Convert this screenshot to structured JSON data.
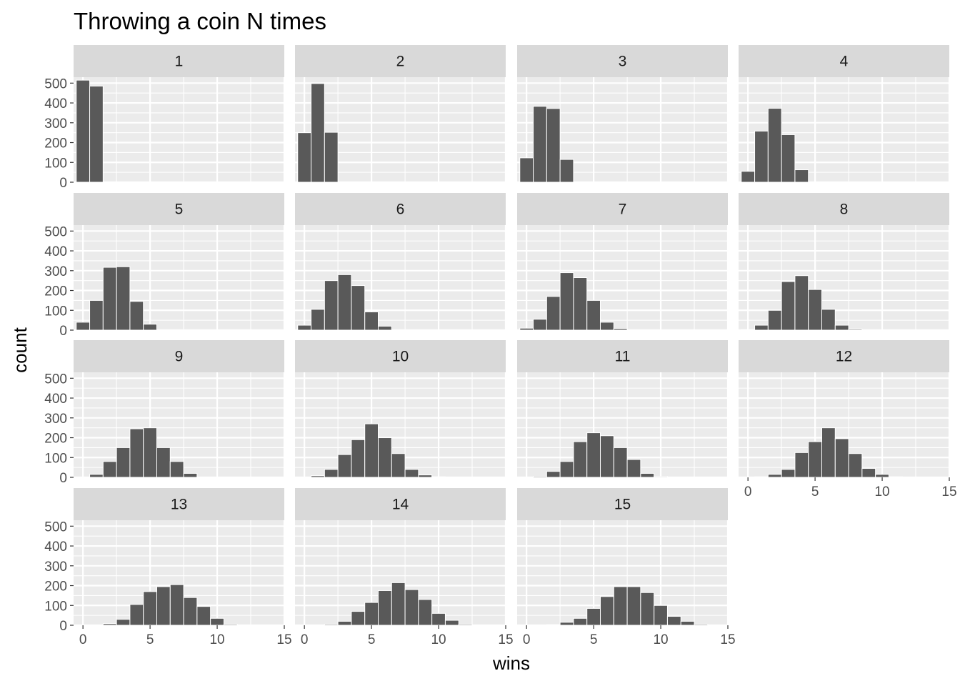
{
  "chart_data": {
    "type": "bar",
    "title": "Throwing a coin N times",
    "xlabel": "wins",
    "ylabel": "count",
    "xlim": [
      -0.7,
      15
    ],
    "ylim": [
      0,
      530
    ],
    "x_ticks": [
      0,
      5,
      10,
      15
    ],
    "y_ticks": [
      0,
      100,
      200,
      300,
      400,
      500
    ],
    "grid": true,
    "facets": [
      {
        "label": "1",
        "bins": [
          0,
          1
        ],
        "counts": [
          515,
          485
        ]
      },
      {
        "label": "2",
        "bins": [
          0,
          1,
          2
        ],
        "counts": [
          250,
          498,
          252
        ]
      },
      {
        "label": "3",
        "bins": [
          0,
          1,
          2,
          3
        ],
        "counts": [
          123,
          383,
          372,
          115
        ]
      },
      {
        "label": "4",
        "bins": [
          0,
          1,
          2,
          3,
          4
        ],
        "counts": [
          55,
          258,
          373,
          240,
          63
        ]
      },
      {
        "label": "5",
        "bins": [
          0,
          1,
          2,
          3,
          4,
          5
        ],
        "counts": [
          40,
          150,
          317,
          320,
          145,
          30
        ]
      },
      {
        "label": "6",
        "bins": [
          0,
          1,
          2,
          3,
          4,
          5,
          6
        ],
        "counts": [
          25,
          105,
          250,
          280,
          225,
          92,
          20
        ]
      },
      {
        "label": "7",
        "bins": [
          0,
          1,
          2,
          3,
          4,
          5,
          6,
          7
        ],
        "counts": [
          10,
          55,
          170,
          290,
          265,
          150,
          40,
          8
        ]
      },
      {
        "label": "8",
        "bins": [
          0,
          1,
          2,
          3,
          4,
          5,
          6,
          7,
          8
        ],
        "counts": [
          3,
          25,
          100,
          245,
          275,
          205,
          105,
          25,
          5
        ]
      },
      {
        "label": "9",
        "bins": [
          0,
          1,
          2,
          3,
          4,
          5,
          6,
          7,
          8,
          9
        ],
        "counts": [
          1,
          15,
          80,
          150,
          245,
          250,
          150,
          80,
          20,
          2
        ]
      },
      {
        "label": "10",
        "bins": [
          0,
          1,
          2,
          3,
          4,
          5,
          6,
          7,
          8,
          9,
          10
        ],
        "counts": [
          2,
          8,
          40,
          115,
          190,
          270,
          200,
          120,
          40,
          12,
          3
        ]
      },
      {
        "label": "11",
        "bins": [
          0,
          1,
          2,
          3,
          4,
          5,
          6,
          7,
          8,
          9,
          10,
          11
        ],
        "counts": [
          1,
          5,
          30,
          80,
          180,
          225,
          210,
          150,
          90,
          20,
          4,
          1
        ]
      },
      {
        "label": "12",
        "bins": [
          0,
          1,
          2,
          3,
          4,
          5,
          6,
          7,
          8,
          9,
          10,
          11,
          12
        ],
        "counts": [
          0,
          3,
          15,
          40,
          125,
          180,
          250,
          195,
          120,
          45,
          15,
          3,
          1
        ]
      },
      {
        "label": "13",
        "bins": [
          0,
          1,
          2,
          3,
          4,
          5,
          6,
          7,
          8,
          9,
          10,
          11,
          12,
          13
        ],
        "counts": [
          0,
          1,
          8,
          30,
          105,
          170,
          195,
          205,
          140,
          95,
          35,
          5,
          1,
          0
        ]
      },
      {
        "label": "14",
        "bins": [
          0,
          1,
          2,
          3,
          4,
          5,
          6,
          7,
          8,
          9,
          10,
          11,
          12,
          13,
          14
        ],
        "counts": [
          0,
          0,
          5,
          20,
          70,
          115,
          175,
          215,
          180,
          130,
          60,
          25,
          5,
          1,
          0
        ]
      },
      {
        "label": "15",
        "bins": [
          0,
          1,
          2,
          3,
          4,
          5,
          6,
          7,
          8,
          9,
          10,
          11,
          12,
          13,
          14,
          15
        ],
        "counts": [
          0,
          0,
          3,
          15,
          35,
          85,
          145,
          195,
          195,
          165,
          100,
          45,
          20,
          5,
          1,
          0
        ]
      }
    ]
  },
  "colors": {
    "bar_fill": "#595959",
    "bar_outline": "#ffffff",
    "panel_background": "#ebebeb",
    "grid_line": "#ffffff",
    "strip_background": "#d9d9d9",
    "tick_label": "#4d4d4d",
    "tick_mark": "#333333"
  }
}
